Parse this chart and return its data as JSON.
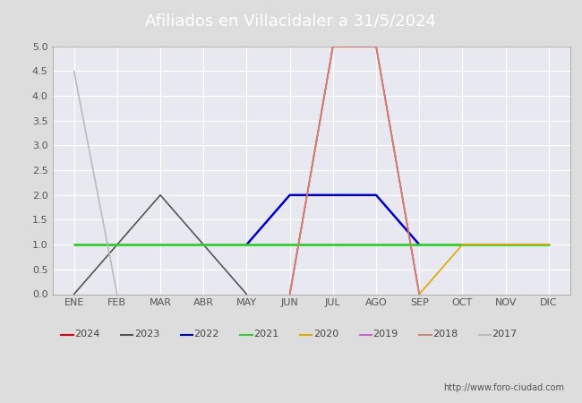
{
  "title": "Afiliados en Villacidaler a 31/5/2024",
  "months": [
    "ENE",
    "FEB",
    "MAR",
    "ABR",
    "MAY",
    "JUN",
    "JUL",
    "AGO",
    "SEP",
    "OCT",
    "NOV",
    "DIC"
  ],
  "ylim": [
    0.0,
    5.0
  ],
  "yticks": [
    0.0,
    0.5,
    1.0,
    1.5,
    2.0,
    2.5,
    3.0,
    3.5,
    4.0,
    4.5,
    5.0
  ],
  "series": [
    {
      "label": "2024",
      "color": "#e8000d",
      "linewidth": 1.2,
      "data": [
        null,
        null,
        null,
        null,
        null,
        0,
        5,
        5,
        0,
        null,
        null,
        null
      ]
    },
    {
      "label": "2023",
      "color": "#555555",
      "linewidth": 1.2,
      "data": [
        0,
        1,
        2,
        1,
        0,
        null,
        null,
        null,
        null,
        null,
        null,
        null
      ]
    },
    {
      "label": "2022",
      "color": "#0000cc",
      "linewidth": 1.8,
      "data": [
        null,
        null,
        null,
        null,
        1,
        2,
        2,
        2,
        1,
        null,
        null,
        null
      ]
    },
    {
      "label": "2021",
      "color": "#33cc33",
      "linewidth": 2.0,
      "data": [
        1,
        1,
        1,
        1,
        1,
        1,
        1,
        1,
        1,
        1,
        1,
        1
      ]
    },
    {
      "label": "2020",
      "color": "#ddaa00",
      "linewidth": 1.2,
      "data": [
        null,
        null,
        null,
        null,
        null,
        null,
        null,
        null,
        0,
        1,
        1,
        1
      ]
    },
    {
      "label": "2019",
      "color": "#cc66cc",
      "linewidth": 1.2,
      "data": [
        null,
        null,
        null,
        null,
        null,
        null,
        null,
        null,
        null,
        null,
        null,
        null
      ]
    },
    {
      "label": "2018",
      "color": "#cc8877",
      "linewidth": 1.2,
      "data": [
        null,
        null,
        null,
        null,
        null,
        0,
        5,
        5,
        0,
        null,
        null,
        null
      ]
    },
    {
      "label": "2017",
      "color": "#bbbbbb",
      "linewidth": 1.2,
      "data": [
        4.5,
        0,
        null,
        null,
        null,
        null,
        null,
        null,
        null,
        null,
        null,
        null
      ]
    }
  ],
  "title_fontsize": 13,
  "header_bg": "#5588cc",
  "footer_text": "http://www.foro-ciudad.com",
  "outer_bg": "#dddddd",
  "plot_bg": "#e8e8f0",
  "grid_color": "#ffffff",
  "legend_fontsize": 8.0,
  "axis_label_fontsize": 8,
  "tick_color": "#555555"
}
